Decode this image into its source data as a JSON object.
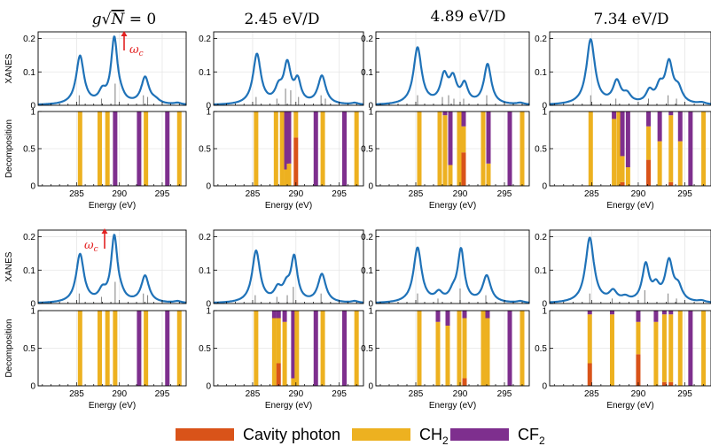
{
  "colors": {
    "spectrum": "#1f72b8",
    "stick": "#7f7f7f",
    "cavity_photon": "#d95319",
    "ch2": "#edb120",
    "cf2": "#7e2f8e",
    "annotation": "#e32222",
    "grid": "#e6e6e6"
  },
  "column_titles": [
    {
      "prefix": "g√",
      "var": "N",
      "suffix": " = 0"
    },
    {
      "text": "2.45 eV/D"
    },
    {
      "text": "4.89 eV/D"
    },
    {
      "text": "7.34 eV/D"
    }
  ],
  "axes": {
    "xanes_ylabel": "XANES",
    "decomp_ylabel": "Decomposition",
    "xlabel": "Energy (eV)",
    "xanes_yticks": [
      "0",
      "0.1",
      "0.2"
    ],
    "decomp_yticks": [
      "0",
      "0.5",
      "1"
    ],
    "xticks": [
      "285",
      "290",
      "295"
    ],
    "xlim": [
      280.5,
      297.8
    ],
    "xanes_ylim": [
      0,
      0.22
    ],
    "decomp_ylim": [
      0,
      1
    ]
  },
  "annotations": {
    "omega_top": "ω",
    "omega_top_sub": "c",
    "omega_bottom": "ω",
    "omega_bottom_sub": "c"
  },
  "legend": {
    "cavity_photon": "Cavity photon",
    "ch2_main": "CH",
    "ch2_sub": "2",
    "cf2_main": "CF",
    "cf2_sub": "2"
  },
  "chart_data": [
    {
      "row": 0,
      "col": 0,
      "type": "line",
      "peaks": [
        [
          285.4,
          0.145,
          0.55
        ],
        [
          288.0,
          0.032,
          0.5
        ],
        [
          289.4,
          0.195,
          0.45
        ],
        [
          290.2,
          0.012,
          0.5
        ],
        [
          293.0,
          0.08,
          0.55
        ],
        [
          294.2,
          0.01,
          0.6
        ],
        [
          296.8,
          0.005,
          0.5
        ]
      ],
      "sticks": [
        [
          285.3,
          0.03
        ],
        [
          287.9,
          0.02
        ],
        [
          289.5,
          0.065
        ],
        [
          292.8,
          0.03
        ],
        [
          293.3,
          0.025
        ]
      ],
      "decomp": [
        [
          285.4,
          0,
          1,
          0
        ],
        [
          287.7,
          0,
          1,
          0
        ],
        [
          288.6,
          0,
          1,
          0
        ],
        [
          289.5,
          0,
          0,
          1
        ],
        [
          292.3,
          0,
          0,
          1
        ],
        [
          293.1,
          0,
          1,
          0
        ],
        [
          295.6,
          0,
          0,
          1
        ],
        [
          297.0,
          0,
          1,
          0
        ]
      ]
    },
    {
      "row": 0,
      "col": 1,
      "type": "line",
      "peaks": [
        [
          285.5,
          0.15,
          0.55
        ],
        [
          288.0,
          0.04,
          0.5
        ],
        [
          289.0,
          0.115,
          0.5
        ],
        [
          290.2,
          0.065,
          0.45
        ],
        [
          293.0,
          0.085,
          0.55
        ],
        [
          296.8,
          0.005,
          0.5
        ]
      ],
      "sticks": [
        [
          285.4,
          0.025
        ],
        [
          287.8,
          0.02
        ],
        [
          288.8,
          0.05
        ],
        [
          289.4,
          0.045
        ],
        [
          290.3,
          0.025
        ],
        [
          292.9,
          0.03
        ],
        [
          293.4,
          0.02
        ]
      ],
      "decomp": [
        [
          285.4,
          0,
          1,
          0
        ],
        [
          287.7,
          0,
          1,
          0
        ],
        [
          288.4,
          0,
          1,
          0
        ],
        [
          288.9,
          0,
          0.22,
          0.78
        ],
        [
          289.2,
          0,
          0.3,
          0.7
        ],
        [
          290.0,
          0.65,
          0.35,
          0
        ],
        [
          292.3,
          0,
          0,
          1
        ],
        [
          293.1,
          0,
          1,
          0
        ],
        [
          295.6,
          0,
          0,
          1
        ],
        [
          297.0,
          0,
          1,
          0
        ]
      ]
    },
    {
      "row": 0,
      "col": 2,
      "type": "line",
      "peaks": [
        [
          285.2,
          0.17,
          0.55
        ],
        [
          288.2,
          0.08,
          0.5
        ],
        [
          289.2,
          0.07,
          0.5
        ],
        [
          290.5,
          0.055,
          0.45
        ],
        [
          293.1,
          0.12,
          0.5
        ],
        [
          296.8,
          0.005,
          0.5
        ]
      ],
      "sticks": [
        [
          285.2,
          0.03
        ],
        [
          288.0,
          0.025
        ],
        [
          288.7,
          0.03
        ],
        [
          289.3,
          0.02
        ],
        [
          290.4,
          0.02
        ],
        [
          293.0,
          0.03
        ]
      ],
      "decomp": [
        [
          285.4,
          0,
          1,
          0
        ],
        [
          287.7,
          0,
          1,
          0
        ],
        [
          288.3,
          0,
          0.95,
          0.05
        ],
        [
          288.9,
          0,
          0.28,
          0.72
        ],
        [
          289.9,
          0,
          1,
          0
        ],
        [
          290.4,
          0.45,
          0.35,
          0.2
        ],
        [
          292.6,
          0,
          1,
          0
        ],
        [
          293.2,
          0,
          0.3,
          0.7
        ],
        [
          295.6,
          0,
          0,
          1
        ],
        [
          297.0,
          0,
          1,
          0
        ]
      ]
    },
    {
      "row": 0,
      "col": 3,
      "type": "line",
      "peaks": [
        [
          284.9,
          0.195,
          0.55
        ],
        [
          287.7,
          0.065,
          0.5
        ],
        [
          288.8,
          0.025,
          0.5
        ],
        [
          291.2,
          0.035,
          0.45
        ],
        [
          292.3,
          0.045,
          0.45
        ],
        [
          293.3,
          0.12,
          0.5
        ],
        [
          294.3,
          0.04,
          0.5
        ],
        [
          296.8,
          0.005,
          0.5
        ]
      ],
      "sticks": [
        [
          284.9,
          0.03
        ],
        [
          287.6,
          0.02
        ],
        [
          291.1,
          0.02
        ],
        [
          293.2,
          0.03
        ],
        [
          294.1,
          0.02
        ]
      ],
      "decomp": [
        [
          284.9,
          0,
          1,
          0
        ],
        [
          287.4,
          0,
          0.9,
          0.1
        ],
        [
          287.9,
          0,
          1,
          0
        ],
        [
          288.3,
          0.05,
          0.35,
          0.6
        ],
        [
          288.9,
          0,
          0.25,
          0.75
        ],
        [
          291.1,
          0.35,
          0.45,
          0.2
        ],
        [
          292.3,
          0,
          0.6,
          0.4
        ],
        [
          293.5,
          0.05,
          0.9,
          0.05
        ],
        [
          294.5,
          0,
          0.6,
          0.4
        ],
        [
          295.6,
          0,
          0,
          1
        ],
        [
          297.0,
          0,
          1,
          0
        ]
      ]
    },
    {
      "row": 1,
      "col": 0,
      "type": "line",
      "peaks": [
        [
          285.4,
          0.145,
          0.55
        ],
        [
          288.0,
          0.03,
          0.5
        ],
        [
          289.4,
          0.195,
          0.45
        ],
        [
          290.2,
          0.012,
          0.5
        ],
        [
          293.0,
          0.08,
          0.55
        ],
        [
          296.8,
          0.005,
          0.5
        ]
      ],
      "sticks": [
        [
          285.3,
          0.03
        ],
        [
          287.9,
          0.02
        ],
        [
          289.5,
          0.065
        ],
        [
          292.8,
          0.03
        ],
        [
          293.3,
          0.025
        ]
      ],
      "decomp": [
        [
          285.4,
          0,
          1,
          0
        ],
        [
          287.7,
          0,
          1,
          0
        ],
        [
          288.6,
          0,
          1,
          0
        ],
        [
          289.5,
          0,
          1,
          0
        ],
        [
          292.3,
          0,
          0,
          1
        ],
        [
          293.1,
          0,
          1,
          0
        ],
        [
          295.6,
          0,
          0,
          1
        ],
        [
          297.0,
          0,
          1,
          0
        ]
      ]
    },
    {
      "row": 1,
      "col": 1,
      "type": "line",
      "peaks": [
        [
          285.4,
          0.155,
          0.55
        ],
        [
          287.9,
          0.035,
          0.5
        ],
        [
          288.9,
          0.04,
          0.5
        ],
        [
          289.8,
          0.13,
          0.45
        ],
        [
          293.0,
          0.085,
          0.55
        ],
        [
          296.8,
          0.005,
          0.5
        ]
      ],
      "sticks": [
        [
          285.3,
          0.025
        ],
        [
          287.8,
          0.02
        ],
        [
          289.0,
          0.025
        ],
        [
          289.7,
          0.05
        ],
        [
          292.9,
          0.03
        ]
      ],
      "decomp": [
        [
          285.4,
          0,
          1,
          0
        ],
        [
          287.5,
          0,
          0.9,
          0.1
        ],
        [
          288.0,
          0.3,
          0.6,
          0.1
        ],
        [
          288.7,
          0,
          0.85,
          0.15
        ],
        [
          289.7,
          0,
          0.1,
          0.9
        ],
        [
          290.1,
          0,
          1,
          0
        ],
        [
          292.3,
          0,
          0,
          1
        ],
        [
          293.1,
          0,
          1,
          0
        ],
        [
          295.6,
          0,
          0,
          1
        ],
        [
          297.0,
          0,
          1,
          0
        ]
      ]
    },
    {
      "row": 1,
      "col": 2,
      "type": "line",
      "peaks": [
        [
          285.2,
          0.165,
          0.55
        ],
        [
          287.6,
          0.025,
          0.5
        ],
        [
          289.2,
          0.025,
          0.5
        ],
        [
          290.1,
          0.155,
          0.45
        ],
        [
          293.0,
          0.08,
          0.55
        ],
        [
          296.8,
          0.005,
          0.5
        ]
      ],
      "sticks": [
        [
          285.2,
          0.03
        ],
        [
          287.5,
          0.015
        ],
        [
          290.0,
          0.045
        ],
        [
          292.9,
          0.025
        ]
      ],
      "decomp": [
        [
          285.4,
          0,
          1,
          0
        ],
        [
          287.5,
          0,
          0.85,
          0.15
        ],
        [
          288.6,
          0,
          0.8,
          0.2
        ],
        [
          289.9,
          0,
          1,
          0
        ],
        [
          290.5,
          0.1,
          0.8,
          0.1
        ],
        [
          292.6,
          0,
          1,
          0
        ],
        [
          293.1,
          0,
          0.9,
          0.1
        ],
        [
          295.6,
          0,
          0,
          1
        ],
        [
          297.0,
          0,
          1,
          0
        ]
      ]
    },
    {
      "row": 1,
      "col": 3,
      "type": "line",
      "peaks": [
        [
          284.8,
          0.195,
          0.55
        ],
        [
          287.3,
          0.03,
          0.5
        ],
        [
          288.6,
          0.012,
          0.5
        ],
        [
          290.8,
          0.11,
          0.45
        ],
        [
          291.9,
          0.04,
          0.45
        ],
        [
          293.3,
          0.12,
          0.5
        ],
        [
          294.3,
          0.04,
          0.5
        ],
        [
          296.8,
          0.005,
          0.5
        ]
      ],
      "sticks": [
        [
          284.8,
          0.03
        ],
        [
          287.2,
          0.015
        ],
        [
          290.7,
          0.04
        ],
        [
          293.2,
          0.03
        ],
        [
          294.1,
          0.015
        ]
      ],
      "decomp": [
        [
          284.8,
          0.3,
          0.65,
          0.05
        ],
        [
          287.2,
          0,
          0.95,
          0.05
        ],
        [
          290.0,
          0.42,
          0.43,
          0.15
        ],
        [
          291.9,
          0,
          0.85,
          0.15
        ],
        [
          292.8,
          0.05,
          0.9,
          0.05
        ],
        [
          293.5,
          0.05,
          0.9,
          0.05
        ],
        [
          294.5,
          0,
          1,
          0
        ],
        [
          295.6,
          0,
          0,
          1
        ],
        [
          297.0,
          0,
          1,
          0
        ]
      ]
    }
  ]
}
